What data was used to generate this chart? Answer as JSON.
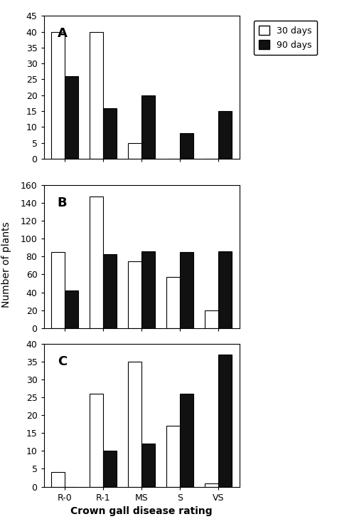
{
  "categories": [
    "R-0",
    "R-1",
    "MS",
    "S",
    "VS"
  ],
  "panel_A": {
    "label": "A",
    "days30": [
      40,
      40,
      5,
      0,
      0
    ],
    "days90": [
      26,
      16,
      20,
      8,
      15
    ],
    "ylim": [
      0,
      45
    ],
    "yticks": [
      0,
      5,
      10,
      15,
      20,
      25,
      30,
      35,
      40,
      45
    ]
  },
  "panel_B": {
    "label": "B",
    "days30": [
      85,
      147,
      75,
      57,
      20
    ],
    "days90": [
      42,
      83,
      86,
      85,
      86
    ],
    "ylim": [
      0,
      160
    ],
    "yticks": [
      0,
      20,
      40,
      60,
      80,
      100,
      120,
      140,
      160
    ]
  },
  "panel_C": {
    "label": "C",
    "days30": [
      4,
      26,
      35,
      17,
      1
    ],
    "days90": [
      0,
      10,
      12,
      26,
      37
    ],
    "ylim": [
      0,
      40
    ],
    "yticks": [
      0,
      5,
      10,
      15,
      20,
      25,
      30,
      35,
      40
    ]
  },
  "bar_width": 0.35,
  "color_30days": "#ffffff",
  "color_90days": "#111111",
  "edge_color": "#000000",
  "xlabel": "Crown gall disease rating",
  "ylabel": "Number of plants",
  "legend_labels": [
    "30 days",
    "90 days"
  ],
  "legend_colors": [
    "#ffffff",
    "#111111"
  ],
  "tick_fontsize": 9,
  "axis_label_fontsize": 10,
  "panel_label_fontsize": 13,
  "legend_fontsize": 9
}
